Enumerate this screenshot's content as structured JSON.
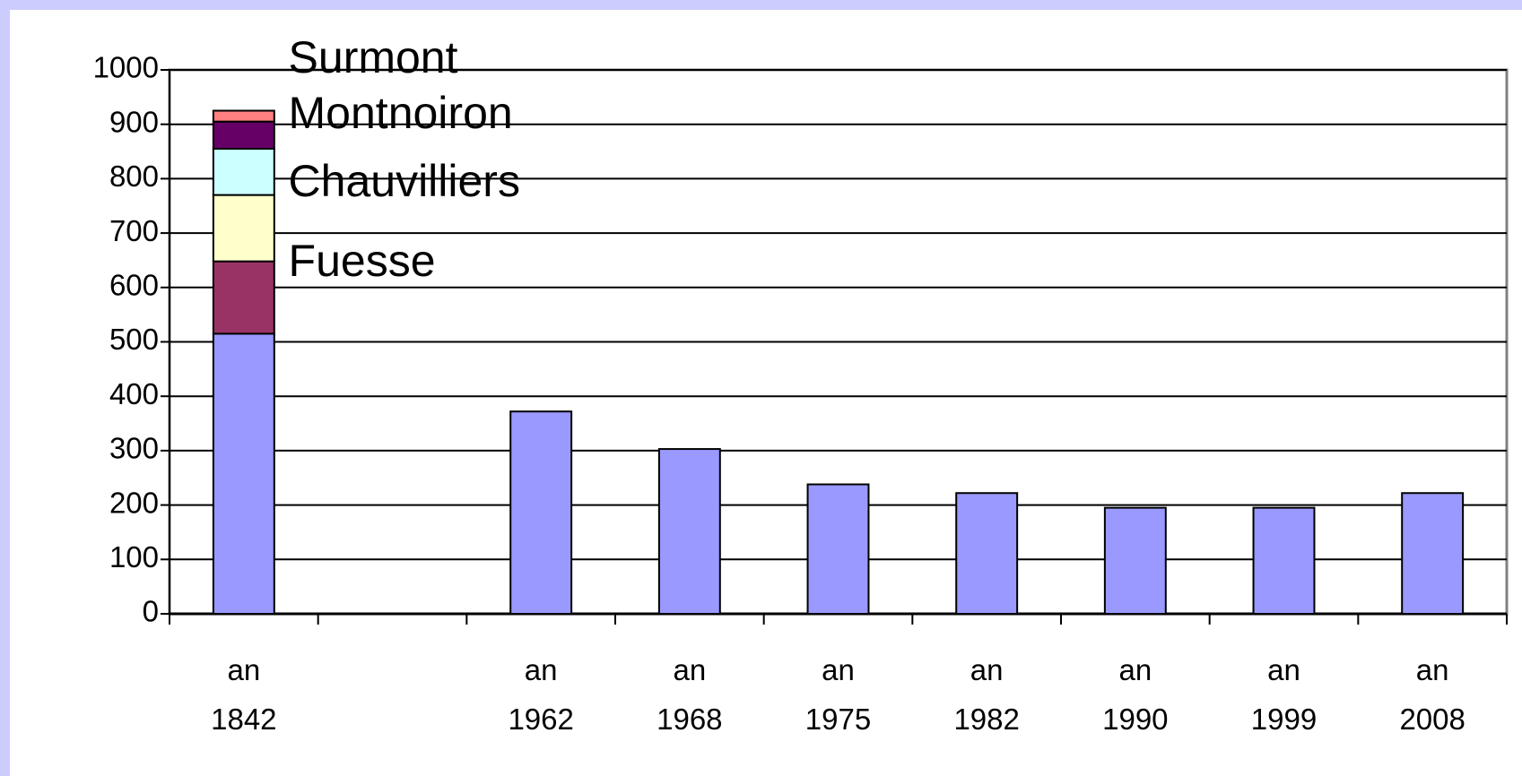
{
  "chart_data": {
    "type": "stacked_bar",
    "categories": [
      "an 1842",
      null,
      "an 1962",
      "an 1968",
      "an 1975",
      "an 1982",
      "an 1990",
      "an 1999",
      "an 2008"
    ],
    "series": [
      {
        "color": "#9999ff",
        "values": [
          515,
          null,
          372,
          303,
          238,
          222,
          195,
          195,
          222
        ]
      },
      {
        "name": "Fuesse",
        "color": "#993366",
        "values": [
          133,
          null,
          null,
          null,
          null,
          null,
          null,
          null,
          null
        ]
      },
      {
        "name": "Chauvilliers",
        "color": "#ffffcc",
        "values": [
          122,
          null,
          null,
          null,
          null,
          null,
          null,
          null,
          null
        ]
      },
      {
        "color": "#ccffff",
        "values": [
          85,
          null,
          null,
          null,
          null,
          null,
          null,
          null,
          null
        ]
      },
      {
        "name": "Montnoiron",
        "color": "#660066",
        "values": [
          50,
          null,
          null,
          null,
          null,
          null,
          null,
          null,
          null
        ]
      },
      {
        "name": "Surmont",
        "color": "#ff8080",
        "values": [
          20,
          null,
          null,
          null,
          null,
          null,
          null,
          null,
          null
        ]
      }
    ],
    "ylim": [
      0,
      1000
    ],
    "yticks": [
      0,
      100,
      200,
      300,
      400,
      500,
      600,
      700,
      800,
      900,
      1000
    ],
    "grid": true
  }
}
